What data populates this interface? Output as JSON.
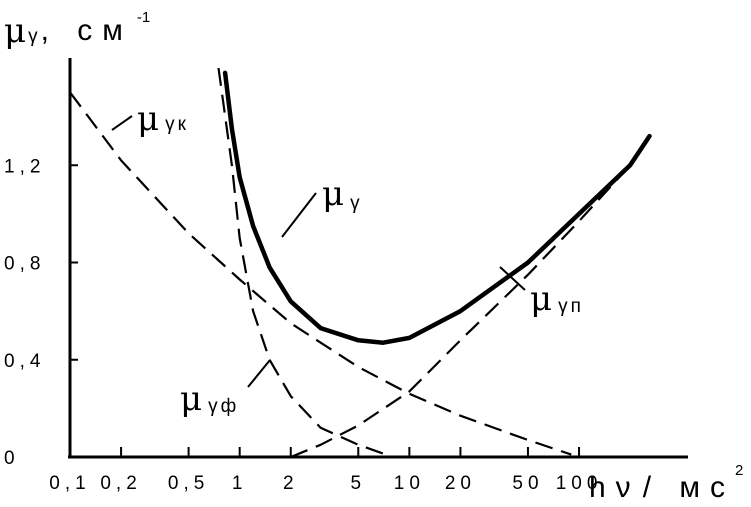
{
  "chart_data": {
    "type": "line",
    "x_scale": "log",
    "xlim": [
      0.1,
      300
    ],
    "ylim": [
      0,
      1.6
    ],
    "y_ticks": [
      {
        "value": 0,
        "label": "0"
      },
      {
        "value": 0.4,
        "label": "0,4"
      },
      {
        "value": 0.8,
        "label": "0,8"
      },
      {
        "value": 1.2,
        "label": "1,2"
      }
    ],
    "x_ticks": [
      {
        "value": 0.1,
        "label": "0,1"
      },
      {
        "value": 0.2,
        "label": "0,2"
      },
      {
        "value": 0.5,
        "label": "0,5"
      },
      {
        "value": 1,
        "label": "1"
      },
      {
        "value": 2,
        "label": "2"
      },
      {
        "value": 5,
        "label": "5"
      },
      {
        "value": 10,
        "label": "10"
      },
      {
        "value": 20,
        "label": "20"
      },
      {
        "value": 50,
        "label": "50"
      },
      {
        "value": 100,
        "label": "100"
      }
    ],
    "ylabel": {
      "main": "μ",
      "sub": "γ",
      "unit": ", см",
      "sup": "-1"
    },
    "xlabel": {
      "main": "hν",
      "unit": "/ мс",
      "sup": "2"
    },
    "series": [
      {
        "name": "μγ",
        "label_main": "μ",
        "label_sub": "γ",
        "style": "solid",
        "points": [
          [
            0.82,
            1.58
          ],
          [
            0.9,
            1.35
          ],
          [
            1,
            1.15
          ],
          [
            1.2,
            0.95
          ],
          [
            1.5,
            0.78
          ],
          [
            2,
            0.64
          ],
          [
            3,
            0.53
          ],
          [
            5,
            0.48
          ],
          [
            7,
            0.47
          ],
          [
            10,
            0.49
          ],
          [
            20,
            0.6
          ],
          [
            50,
            0.8
          ],
          [
            100,
            1.0
          ],
          [
            200,
            1.2
          ],
          [
            260,
            1.32
          ]
        ]
      },
      {
        "name": "μγк",
        "label_main": "μ",
        "label_sub": "γк",
        "style": "dashed",
        "points": [
          [
            0.1,
            1.5
          ],
          [
            0.2,
            1.22
          ],
          [
            0.5,
            0.92
          ],
          [
            1,
            0.73
          ],
          [
            2,
            0.55
          ],
          [
            5,
            0.37
          ],
          [
            10,
            0.26
          ],
          [
            20,
            0.17
          ],
          [
            50,
            0.07
          ],
          [
            90,
            0.01
          ]
        ]
      },
      {
        "name": "μγф",
        "label_main": "μ",
        "label_sub": "γф",
        "style": "dashed",
        "points": [
          [
            0.75,
            1.6
          ],
          [
            0.9,
            1.2
          ],
          [
            1,
            0.9
          ],
          [
            1.2,
            0.6
          ],
          [
            1.5,
            0.4
          ],
          [
            2,
            0.25
          ],
          [
            3,
            0.12
          ],
          [
            5,
            0.05
          ],
          [
            8,
            0.0
          ]
        ]
      },
      {
        "name": "μγп",
        "label_main": "μ",
        "label_sub": "γп",
        "style": "dashed",
        "points": [
          [
            2,
            0.0
          ],
          [
            3,
            0.05
          ],
          [
            5,
            0.13
          ],
          [
            10,
            0.27
          ],
          [
            20,
            0.48
          ],
          [
            50,
            0.75
          ],
          [
            100,
            0.97
          ],
          [
            200,
            1.2
          ],
          [
            260,
            1.32
          ]
        ]
      }
    ]
  }
}
